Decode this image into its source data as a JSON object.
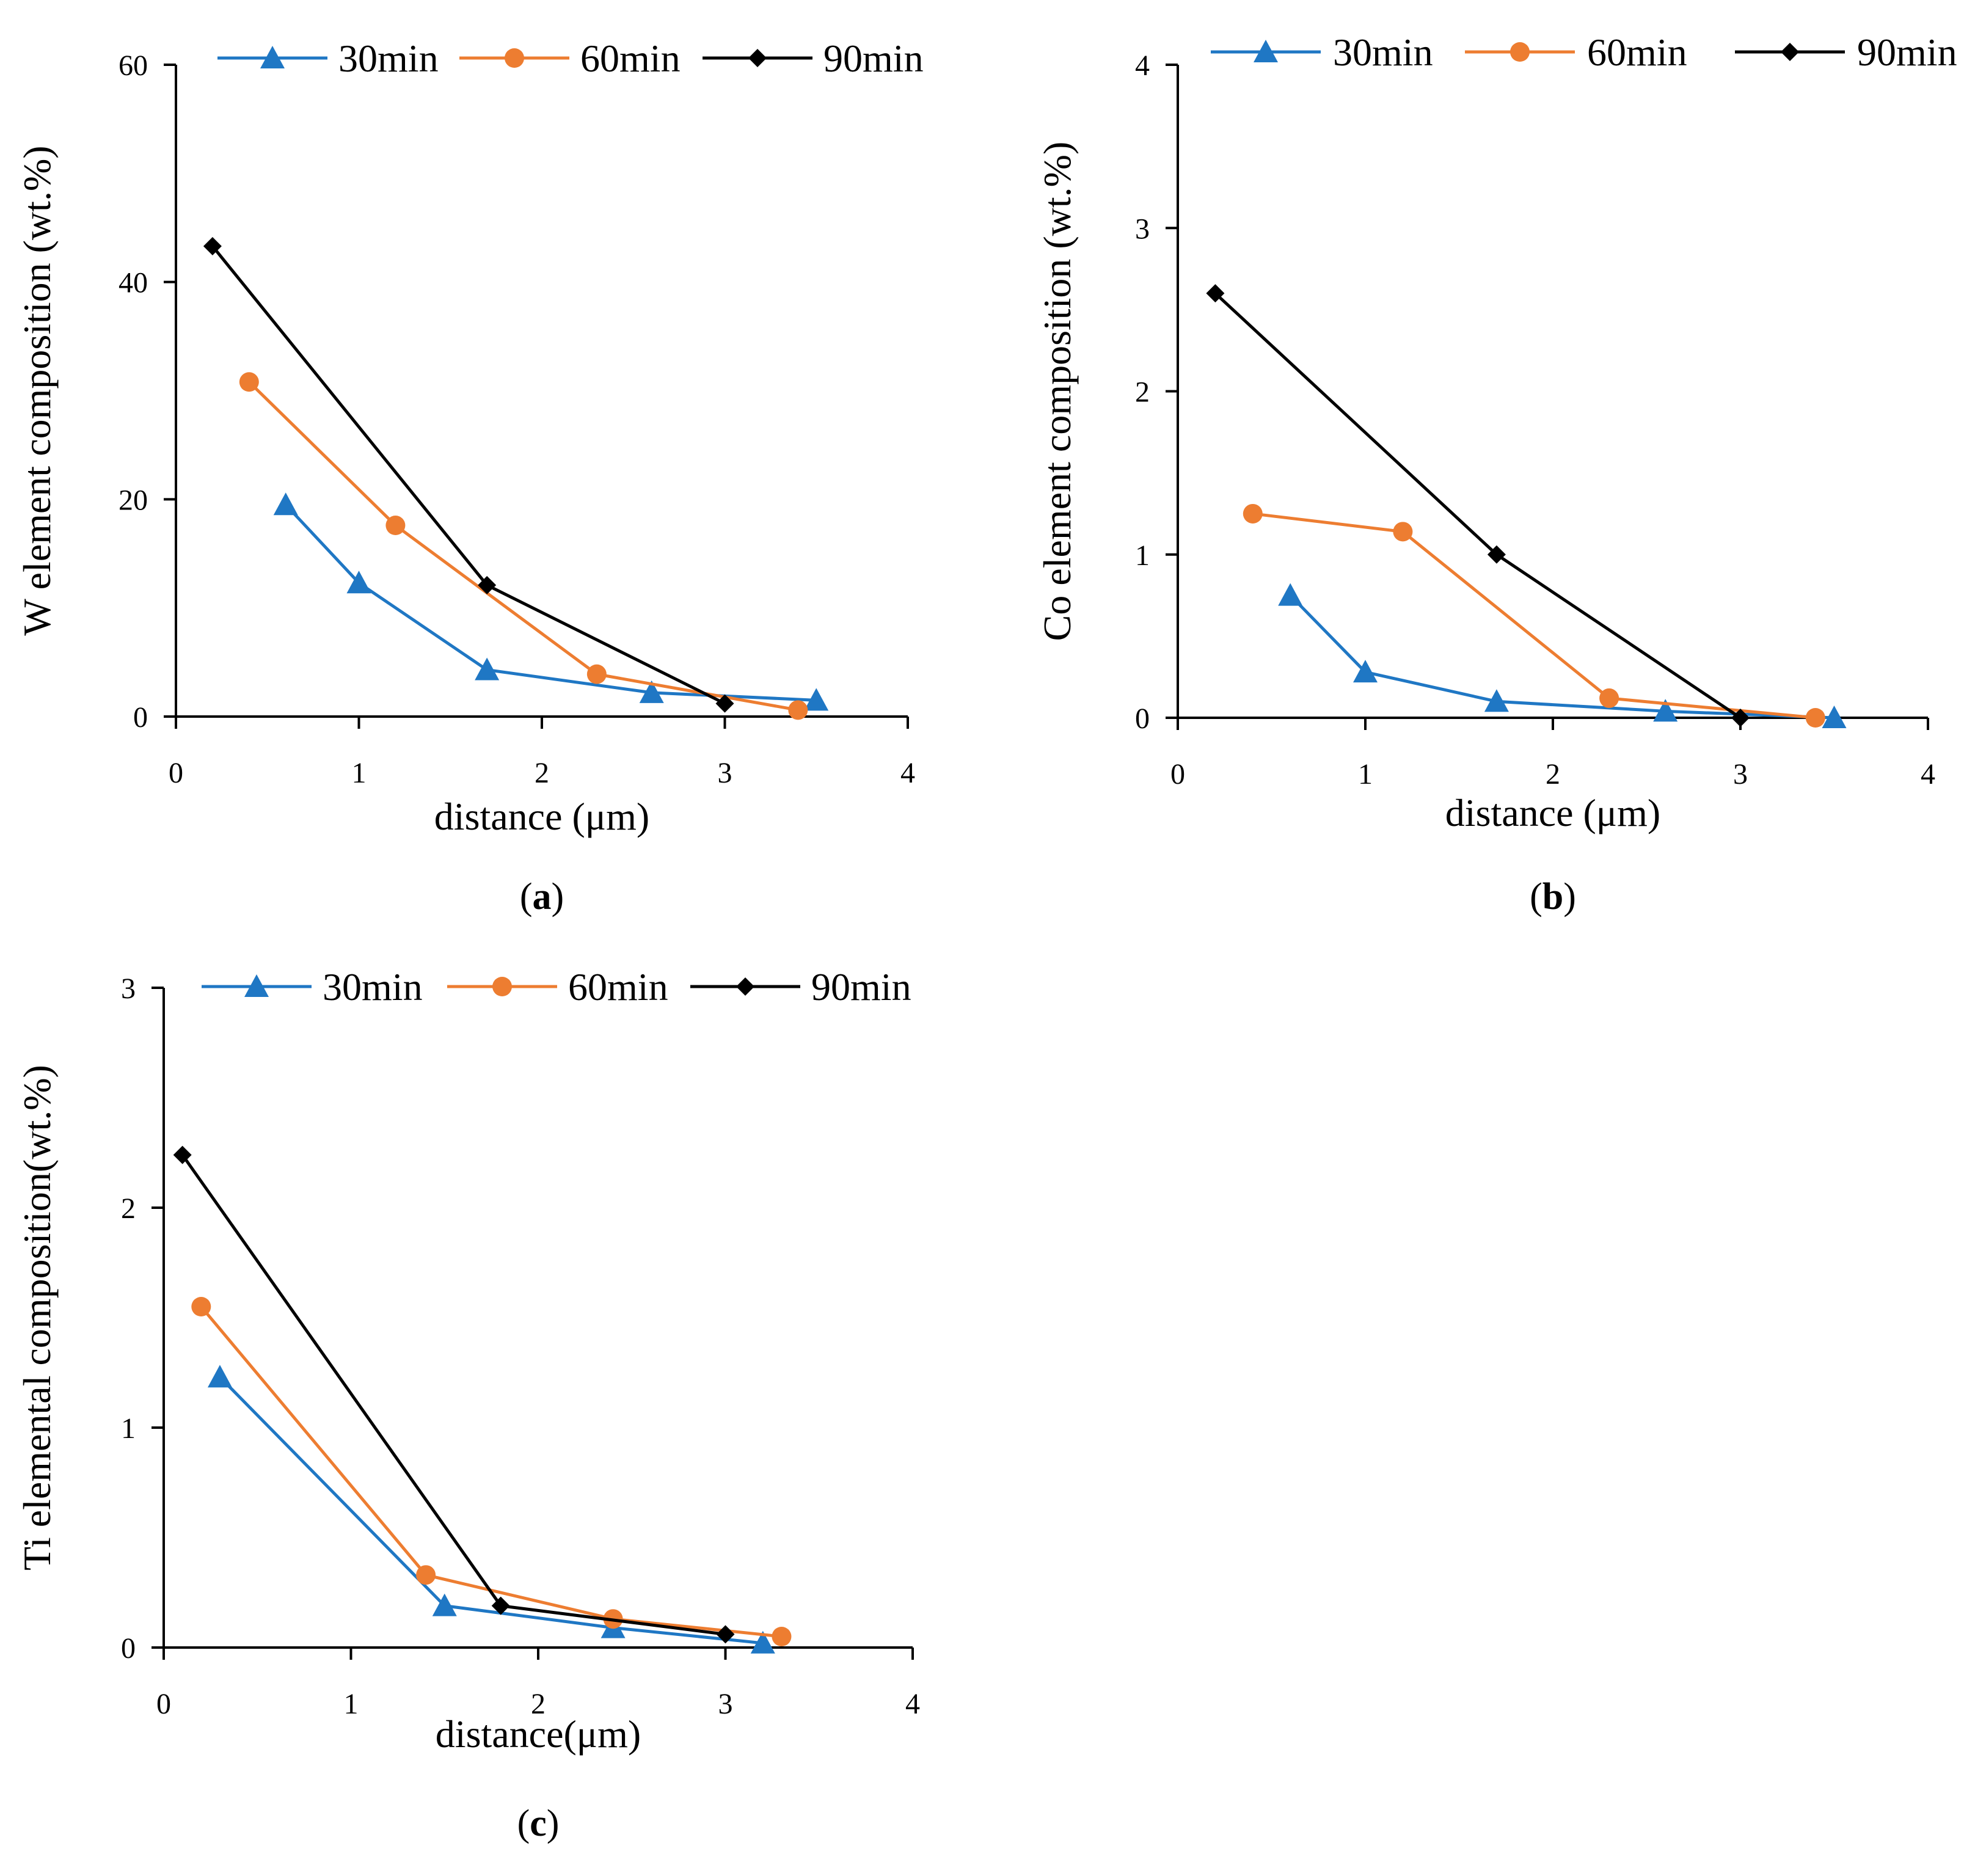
{
  "colors": {
    "30min": "#1f77c4",
    "60min": "#ed7d31",
    "90min": "#000000"
  },
  "chart_data": [
    {
      "type": "line",
      "panel_label": {
        "open": "(",
        "letter": "a",
        "close": ")"
      },
      "xlabel": "distance (μm)",
      "ylabel": "W element composition (wt.%)",
      "xlim": [
        0,
        4
      ],
      "ylim": [
        0,
        60
      ],
      "xticks": [
        "0",
        "1",
        "2",
        "3",
        "4"
      ],
      "yticks": [
        "0",
        "20",
        "40",
        "60"
      ],
      "legend": [
        "30min",
        "60min",
        "90min"
      ],
      "series": [
        {
          "name": "30min",
          "marker": "triangle",
          "x": [
            0.6,
            1.0,
            1.7,
            2.6,
            3.5
          ],
          "y": [
            19.5,
            12.3,
            4.3,
            2.2,
            1.5
          ]
        },
        {
          "name": "60min",
          "marker": "circle",
          "x": [
            0.4,
            1.2,
            2.3,
            3.4
          ],
          "y": [
            30.8,
            17.6,
            3.9,
            0.6
          ]
        },
        {
          "name": "90min",
          "marker": "diamond",
          "x": [
            0.2,
            1.7,
            3.0
          ],
          "y": [
            43.3,
            12.1,
            1.2
          ]
        }
      ]
    },
    {
      "type": "line",
      "panel_label": {
        "open": "(",
        "letter": "b",
        "close": ")"
      },
      "xlabel": "distance (μm)",
      "ylabel": "Co element composition (wt.%)",
      "xlim": [
        0,
        4
      ],
      "ylim": [
        0,
        4
      ],
      "xticks": [
        "0",
        "1",
        "2",
        "3",
        "4"
      ],
      "yticks": [
        "0",
        "1",
        "2",
        "3",
        "4"
      ],
      "legend": [
        "30min",
        "60min",
        "90min"
      ],
      "series": [
        {
          "name": "30min",
          "marker": "triangle",
          "x": [
            0.6,
            1.0,
            1.7,
            2.6,
            3.5
          ],
          "y": [
            0.75,
            0.28,
            0.1,
            0.04,
            0.0
          ]
        },
        {
          "name": "60min",
          "marker": "circle",
          "x": [
            0.4,
            1.2,
            2.3,
            3.4
          ],
          "y": [
            1.25,
            1.14,
            0.12,
            0.0
          ]
        },
        {
          "name": "90min",
          "marker": "diamond",
          "x": [
            0.2,
            1.7,
            3.0
          ],
          "y": [
            2.6,
            1.0,
            0.0
          ]
        }
      ]
    },
    {
      "type": "line",
      "panel_label": {
        "open": "(",
        "letter": "c",
        "close": ")"
      },
      "xlabel": "distance(μm)",
      "ylabel": "Ti elemental composition(wt.%)",
      "xlim": [
        0,
        4
      ],
      "ylim": [
        0,
        3
      ],
      "xticks": [
        "0",
        "1",
        "2",
        "3",
        "4"
      ],
      "yticks": [
        "0",
        "1",
        "2",
        "3"
      ],
      "legend": [
        "30min",
        "60min",
        "90min"
      ],
      "series": [
        {
          "name": "30min",
          "marker": "triangle",
          "x": [
            0.3,
            1.5,
            2.4,
            3.2
          ],
          "y": [
            1.23,
            0.19,
            0.09,
            0.02
          ]
        },
        {
          "name": "60min",
          "marker": "circle",
          "x": [
            0.2,
            1.4,
            2.4,
            3.3
          ],
          "y": [
            1.55,
            0.33,
            0.13,
            0.05
          ]
        },
        {
          "name": "90min",
          "marker": "diamond",
          "x": [
            0.1,
            1.8,
            3.0
          ],
          "y": [
            2.24,
            0.19,
            0.06
          ]
        }
      ]
    }
  ]
}
